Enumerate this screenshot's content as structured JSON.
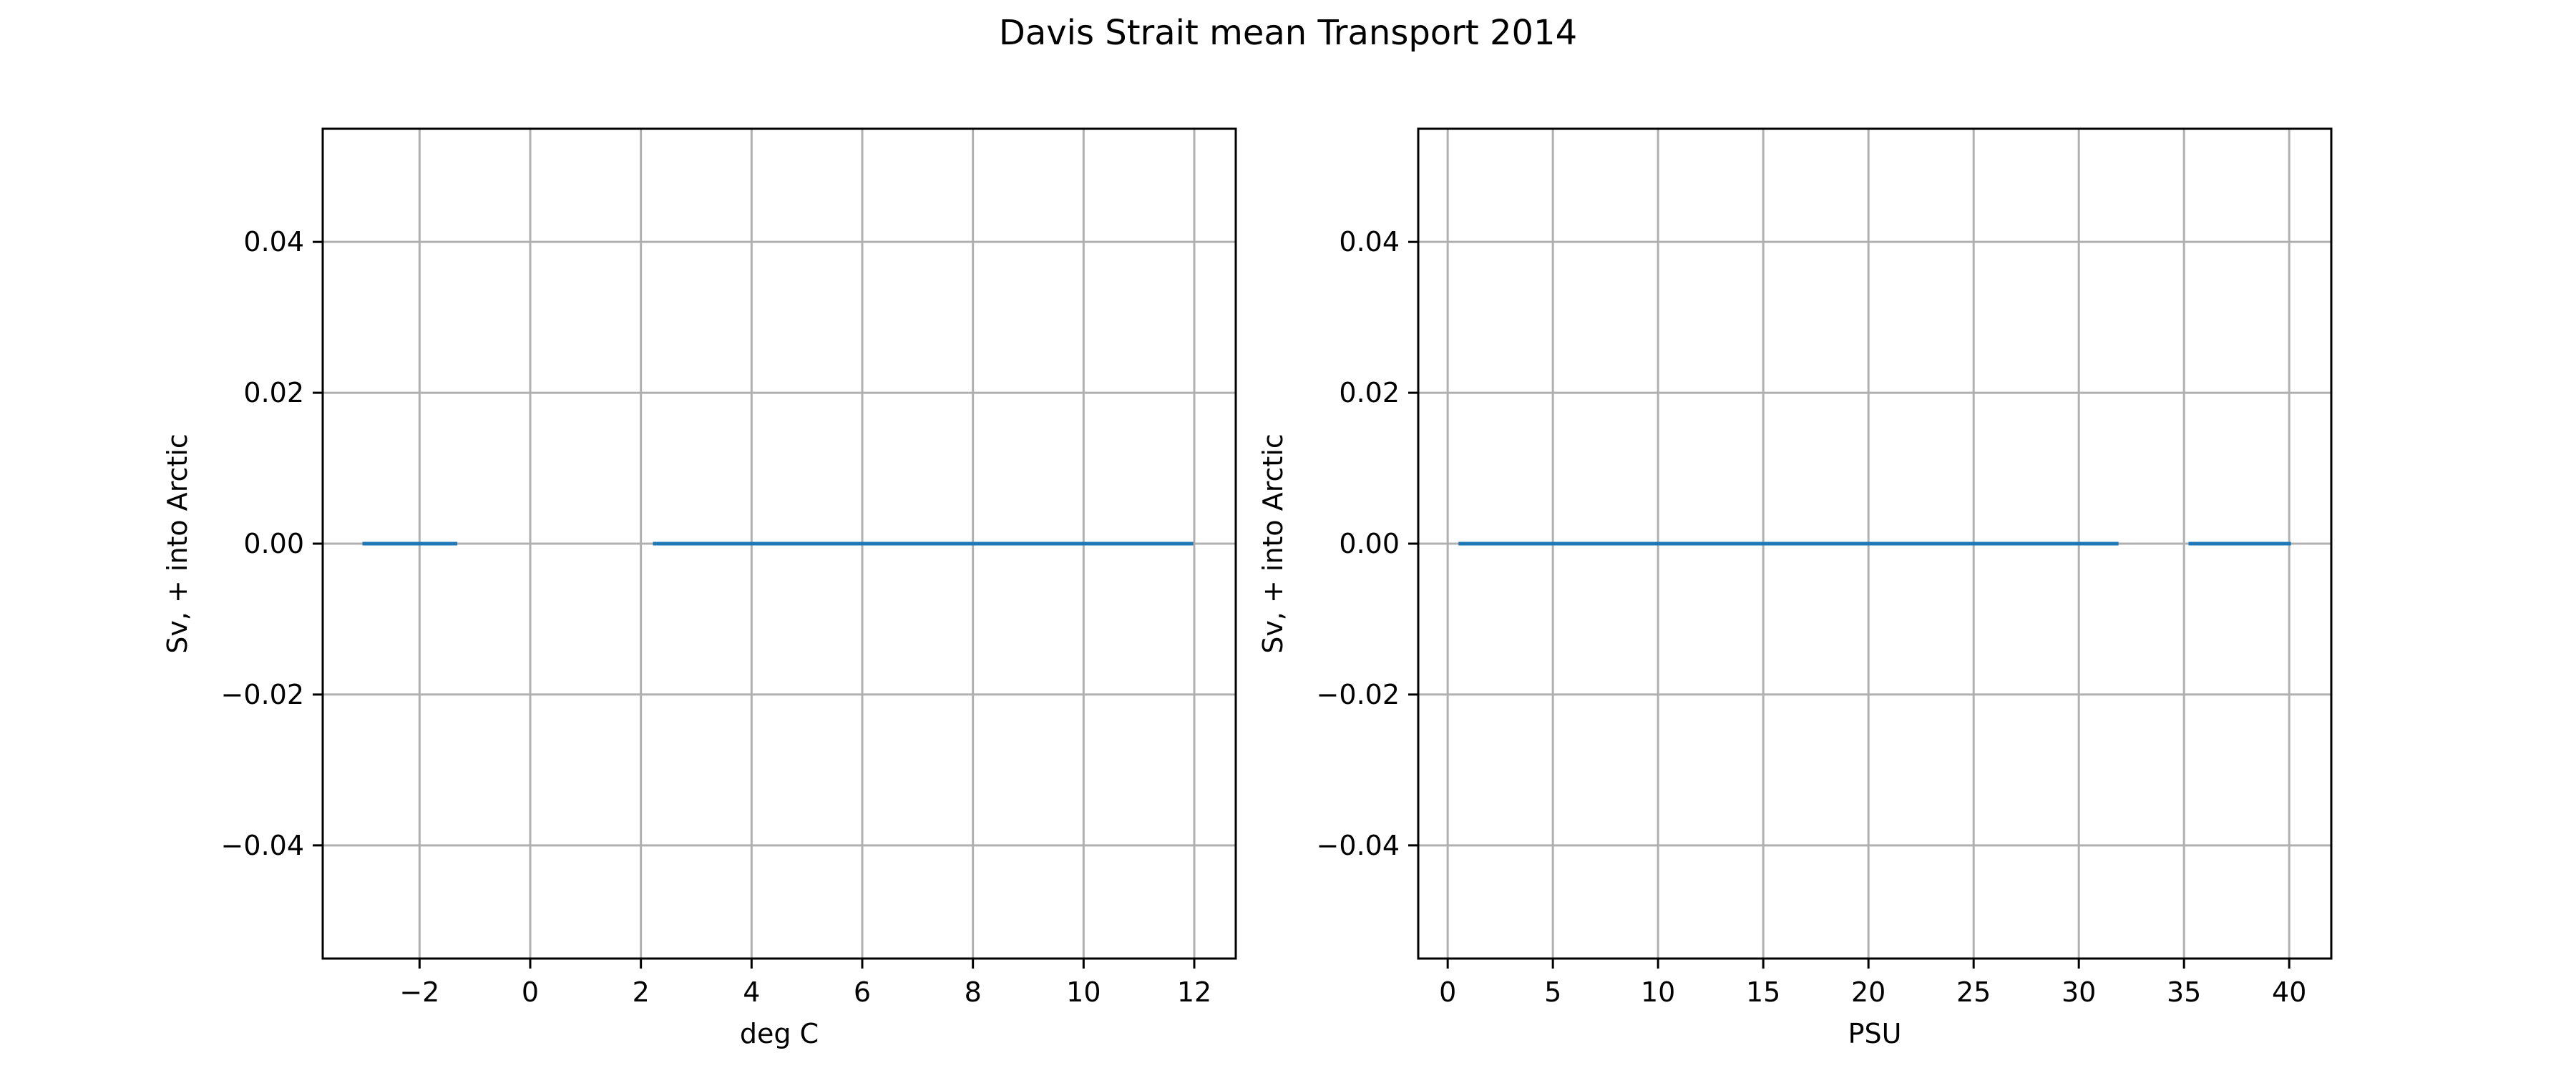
{
  "figure": {
    "title": "Davis Strait mean Transport 2014"
  },
  "colors": {
    "series": "#1f77b4",
    "grid": "#b0b0b0",
    "axes": "#000000",
    "background": "#ffffff"
  },
  "chart_data": [
    {
      "type": "line",
      "title": "",
      "xlabel": "deg C",
      "ylabel": "Sv, + into Arctic",
      "xlim": [
        -3.75,
        12.75
      ],
      "ylim": [
        -0.055,
        0.055
      ],
      "xticks": [
        -2,
        0,
        2,
        4,
        6,
        8,
        10,
        12
      ],
      "xtick_labels": [
        "−2",
        "0",
        "2",
        "4",
        "6",
        "8",
        "10",
        "12"
      ],
      "yticks": [
        -0.04,
        -0.02,
        0.0,
        0.02,
        0.04
      ],
      "ytick_labels": [
        "−0.04",
        "−0.02",
        "0.00",
        "0.02",
        "0.04"
      ],
      "grid": true,
      "series": [
        {
          "segments": [
            {
              "x": [
                -3.0,
                -1.35
              ],
              "y": [
                0.0,
                0.0
              ]
            },
            {
              "x": [
                2.25,
                11.95
              ],
              "y": [
                0.0,
                0.0
              ]
            }
          ]
        }
      ]
    },
    {
      "type": "line",
      "title": "",
      "xlabel": "PSU",
      "ylabel": "Sv, + into Arctic",
      "xlim": [
        -1.4,
        42.0
      ],
      "ylim": [
        -0.055,
        0.055
      ],
      "xticks": [
        0,
        5,
        10,
        15,
        20,
        25,
        30,
        35,
        40
      ],
      "xtick_labels": [
        "0",
        "5",
        "10",
        "15",
        "20",
        "25",
        "30",
        "35",
        "40"
      ],
      "yticks": [
        -0.04,
        -0.02,
        0.0,
        0.02,
        0.04
      ],
      "ytick_labels": [
        "−0.04",
        "−0.02",
        "0.00",
        "0.02",
        "0.04"
      ],
      "grid": true,
      "series": [
        {
          "segments": [
            {
              "x": [
                0.6,
                31.8
              ],
              "y": [
                0.0,
                0.0
              ]
            },
            {
              "x": [
                35.3,
                40.0
              ],
              "y": [
                0.0,
                0.0
              ]
            }
          ]
        }
      ]
    }
  ]
}
